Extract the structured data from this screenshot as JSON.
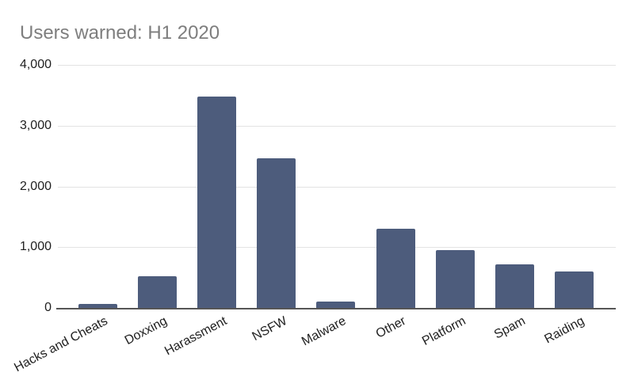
{
  "chart_data": {
    "type": "bar",
    "title": "Users warned: H1 2020",
    "categories": [
      "Hacks and Cheats",
      "Doxxing",
      "Harassment",
      "NSFW",
      "Malware",
      "Other",
      "Platform",
      "Spam",
      "Raiding"
    ],
    "values": [
      60,
      520,
      3480,
      2460,
      100,
      1300,
      950,
      720,
      600
    ],
    "xlabel": "",
    "ylabel": "",
    "ylim": [
      0,
      4000
    ],
    "yticks": [
      0,
      1000,
      2000,
      3000,
      4000
    ],
    "ytick_labels": [
      "0",
      "1,000",
      "2,000",
      "3,000",
      "4,000"
    ],
    "grid": true,
    "legend": false,
    "x_label_rotation_deg": -28,
    "colors": {
      "bar": "#4d5c7c",
      "title": "#7e7e7e",
      "gridline": "#e3e3e3",
      "axis_line": "#565656",
      "tick_label": "#1f1f1f",
      "background": "#ffffff"
    }
  }
}
